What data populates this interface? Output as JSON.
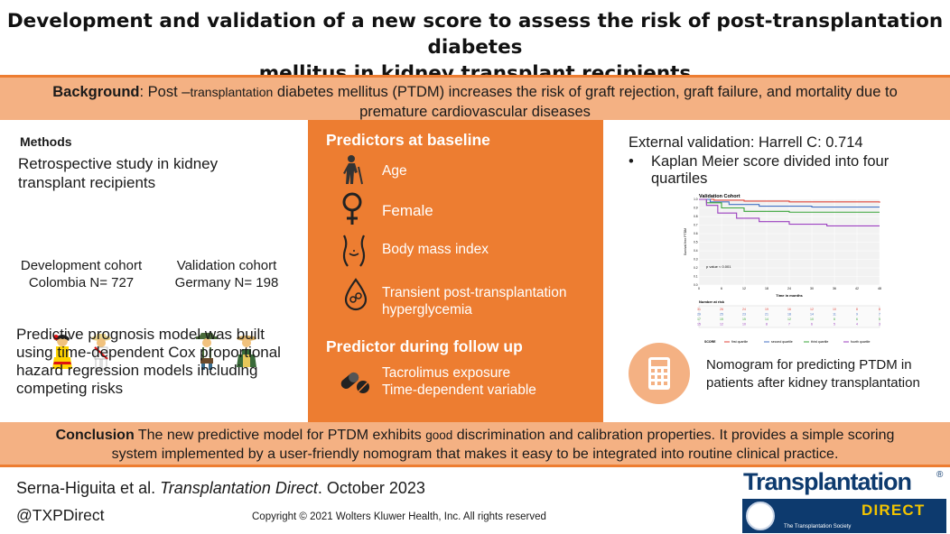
{
  "title": {
    "line1": "Development and validation of a new score to assess the risk of post-transplantation diabetes",
    "line2": "mellitus in kidney transplant recipients"
  },
  "background": {
    "label": "Background",
    "prefix": ": Post –",
    "small": "transplantation",
    "rest": " diabetes mellitus (PTDM) increases the risk of graft rejection, graft failure, and mortality due to",
    "line2": "premature cardiovascular diseases"
  },
  "methods": {
    "heading": "Methods",
    "study": "Retrospective study in kidney transplant recipients",
    "development": {
      "line1": "Development  cohort",
      "line2": "Colombia N= 727"
    },
    "validation": {
      "line1": "Validation cohort",
      "line2": "Germany N= 198"
    },
    "model": "Predictive prognosis model  was built using time-dependent Cox proportional hazard regression models including competing risks"
  },
  "predictors": {
    "heading": "Predictors at baseline",
    "items": [
      {
        "label": "Age",
        "icon": "elderly-person-icon"
      },
      {
        "label": "Female",
        "icon": "female-symbol-icon"
      },
      {
        "label": "Body mass index",
        "icon": "body-silhouette-icon"
      },
      {
        "label": "Transient post-transplantation hyperglycemia",
        "icon": "blood-drop-icon"
      }
    ],
    "followup_heading": "Predictor during follow up",
    "followup": {
      "line1": "Tacrolimus exposure",
      "line2": "Time-dependent  variable",
      "icon": "pills-icon"
    }
  },
  "validation": {
    "harrell": "External validation: Harrell C: 0.714",
    "bullet": "•",
    "km": "Kaplan Meier score divided into four quartiles",
    "nomogram": "Nomogram for predicting PTDM in patients after kidney transplantation",
    "nomogram_icon": "calculator-icon"
  },
  "chart_data": {
    "type": "line",
    "title": "Validation Cohort",
    "xlabel": "Time in months",
    "ylabel": "Survival free PTDM",
    "x_ticks": [
      "0",
      "6",
      "12",
      "18",
      "24",
      "30",
      "36",
      "42",
      "48"
    ],
    "y_ticks": [
      "1.0",
      "0.9",
      "0.8",
      "0.7",
      "0.6",
      "0.5",
      "0.4",
      "0.3",
      "0.2",
      "0.1",
      "0.0"
    ],
    "ylim": [
      0,
      1
    ],
    "xlim": [
      0,
      48
    ],
    "annotation": "p value < 0.001",
    "risk_table_title": "Number at risk",
    "series": [
      {
        "name": "first quartile",
        "color": "#e0453b",
        "x": [
          0,
          4,
          12,
          24,
          48
        ],
        "y": [
          1.0,
          0.99,
          0.98,
          0.97,
          0.96
        ]
      },
      {
        "name": "second quartile",
        "color": "#4472c4",
        "x": [
          0,
          3,
          8,
          16,
          30,
          48
        ],
        "y": [
          1.0,
          0.97,
          0.94,
          0.92,
          0.91,
          0.91
        ]
      },
      {
        "name": "third quartile",
        "color": "#3aa53a",
        "x": [
          0,
          2,
          6,
          12,
          24,
          48
        ],
        "y": [
          1.0,
          0.96,
          0.9,
          0.86,
          0.85,
          0.85
        ]
      },
      {
        "name": "fourth quartile",
        "color": "#9b3fbf",
        "x": [
          0,
          2,
          5,
          10,
          16,
          24,
          34,
          48
        ],
        "y": [
          1.0,
          0.93,
          0.84,
          0.78,
          0.74,
          0.71,
          0.69,
          0.69
        ]
      }
    ],
    "legend_label": "SCORE",
    "risk_table": [
      [
        "31",
        "26",
        "24",
        "19",
        "16",
        "12",
        "10",
        "8",
        "8"
      ],
      [
        "29",
        "25",
        "23",
        "21",
        "18",
        "14",
        "11",
        "9",
        "7"
      ],
      [
        "17",
        "15",
        "15",
        "14",
        "12",
        "10",
        "8",
        "6",
        "5"
      ],
      [
        "15",
        "12",
        "10",
        "8",
        "7",
        "6",
        "5",
        "4",
        "3"
      ]
    ]
  },
  "conclusion": {
    "label": "Conclusion",
    "part1": " The new predictive model for PTDM exhibits ",
    "small": "good",
    "part2": " discrimination and calibration properties. It provides a simple scoring",
    "line2": "system implemented by a user-friendly nomogram that makes it easy to be integrated into routine clinical practice."
  },
  "footer": {
    "authors": "Serna-Higuita et al. ",
    "journal": "Transplantation Direct",
    "date": ". October 2023",
    "handle": "@TXPDirect",
    "copyright": "Copyright © 2021  Wolters Kluwer Health, Inc. All rights reserved"
  },
  "logo": {
    "word": "Transplantation",
    "reg": "®",
    "direct": "DIRECT",
    "society": "The Transplantation Society"
  },
  "colors": {
    "orange": "#ed7d31",
    "light_orange": "#f4b183",
    "navy": "#0d3a6e",
    "gold": "#f2c400"
  }
}
